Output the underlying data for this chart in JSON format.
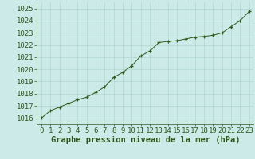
{
  "x": [
    0,
    1,
    2,
    3,
    4,
    5,
    6,
    7,
    8,
    9,
    10,
    11,
    12,
    13,
    14,
    15,
    16,
    17,
    18,
    19,
    20,
    21,
    22,
    23
  ],
  "y": [
    1016.0,
    1016.6,
    1016.9,
    1017.2,
    1017.5,
    1017.7,
    1018.1,
    1018.55,
    1019.35,
    1019.75,
    1020.3,
    1021.1,
    1021.5,
    1022.2,
    1022.3,
    1022.35,
    1022.5,
    1022.65,
    1022.7,
    1022.8,
    1023.0,
    1023.5,
    1024.0,
    1024.75
  ],
  "ylim": [
    1015.5,
    1025.5
  ],
  "xlim": [
    -0.5,
    23.5
  ],
  "yticks": [
    1016,
    1017,
    1018,
    1019,
    1020,
    1021,
    1022,
    1023,
    1024,
    1025
  ],
  "xticks": [
    0,
    1,
    2,
    3,
    4,
    5,
    6,
    7,
    8,
    9,
    10,
    11,
    12,
    13,
    14,
    15,
    16,
    17,
    18,
    19,
    20,
    21,
    22,
    23
  ],
  "xlabel": "Graphe pression niveau de la mer (hPa)",
  "line_color": "#2d5a1b",
  "marker_color": "#2d5a1b",
  "bg_color": "#cceae8",
  "grid_color": "#b0d8d0",
  "tick_label_color": "#2d5a1b",
  "xlabel_color": "#2d5a1b",
  "tick_fontsize": 6.5,
  "xlabel_fontsize": 7.5
}
